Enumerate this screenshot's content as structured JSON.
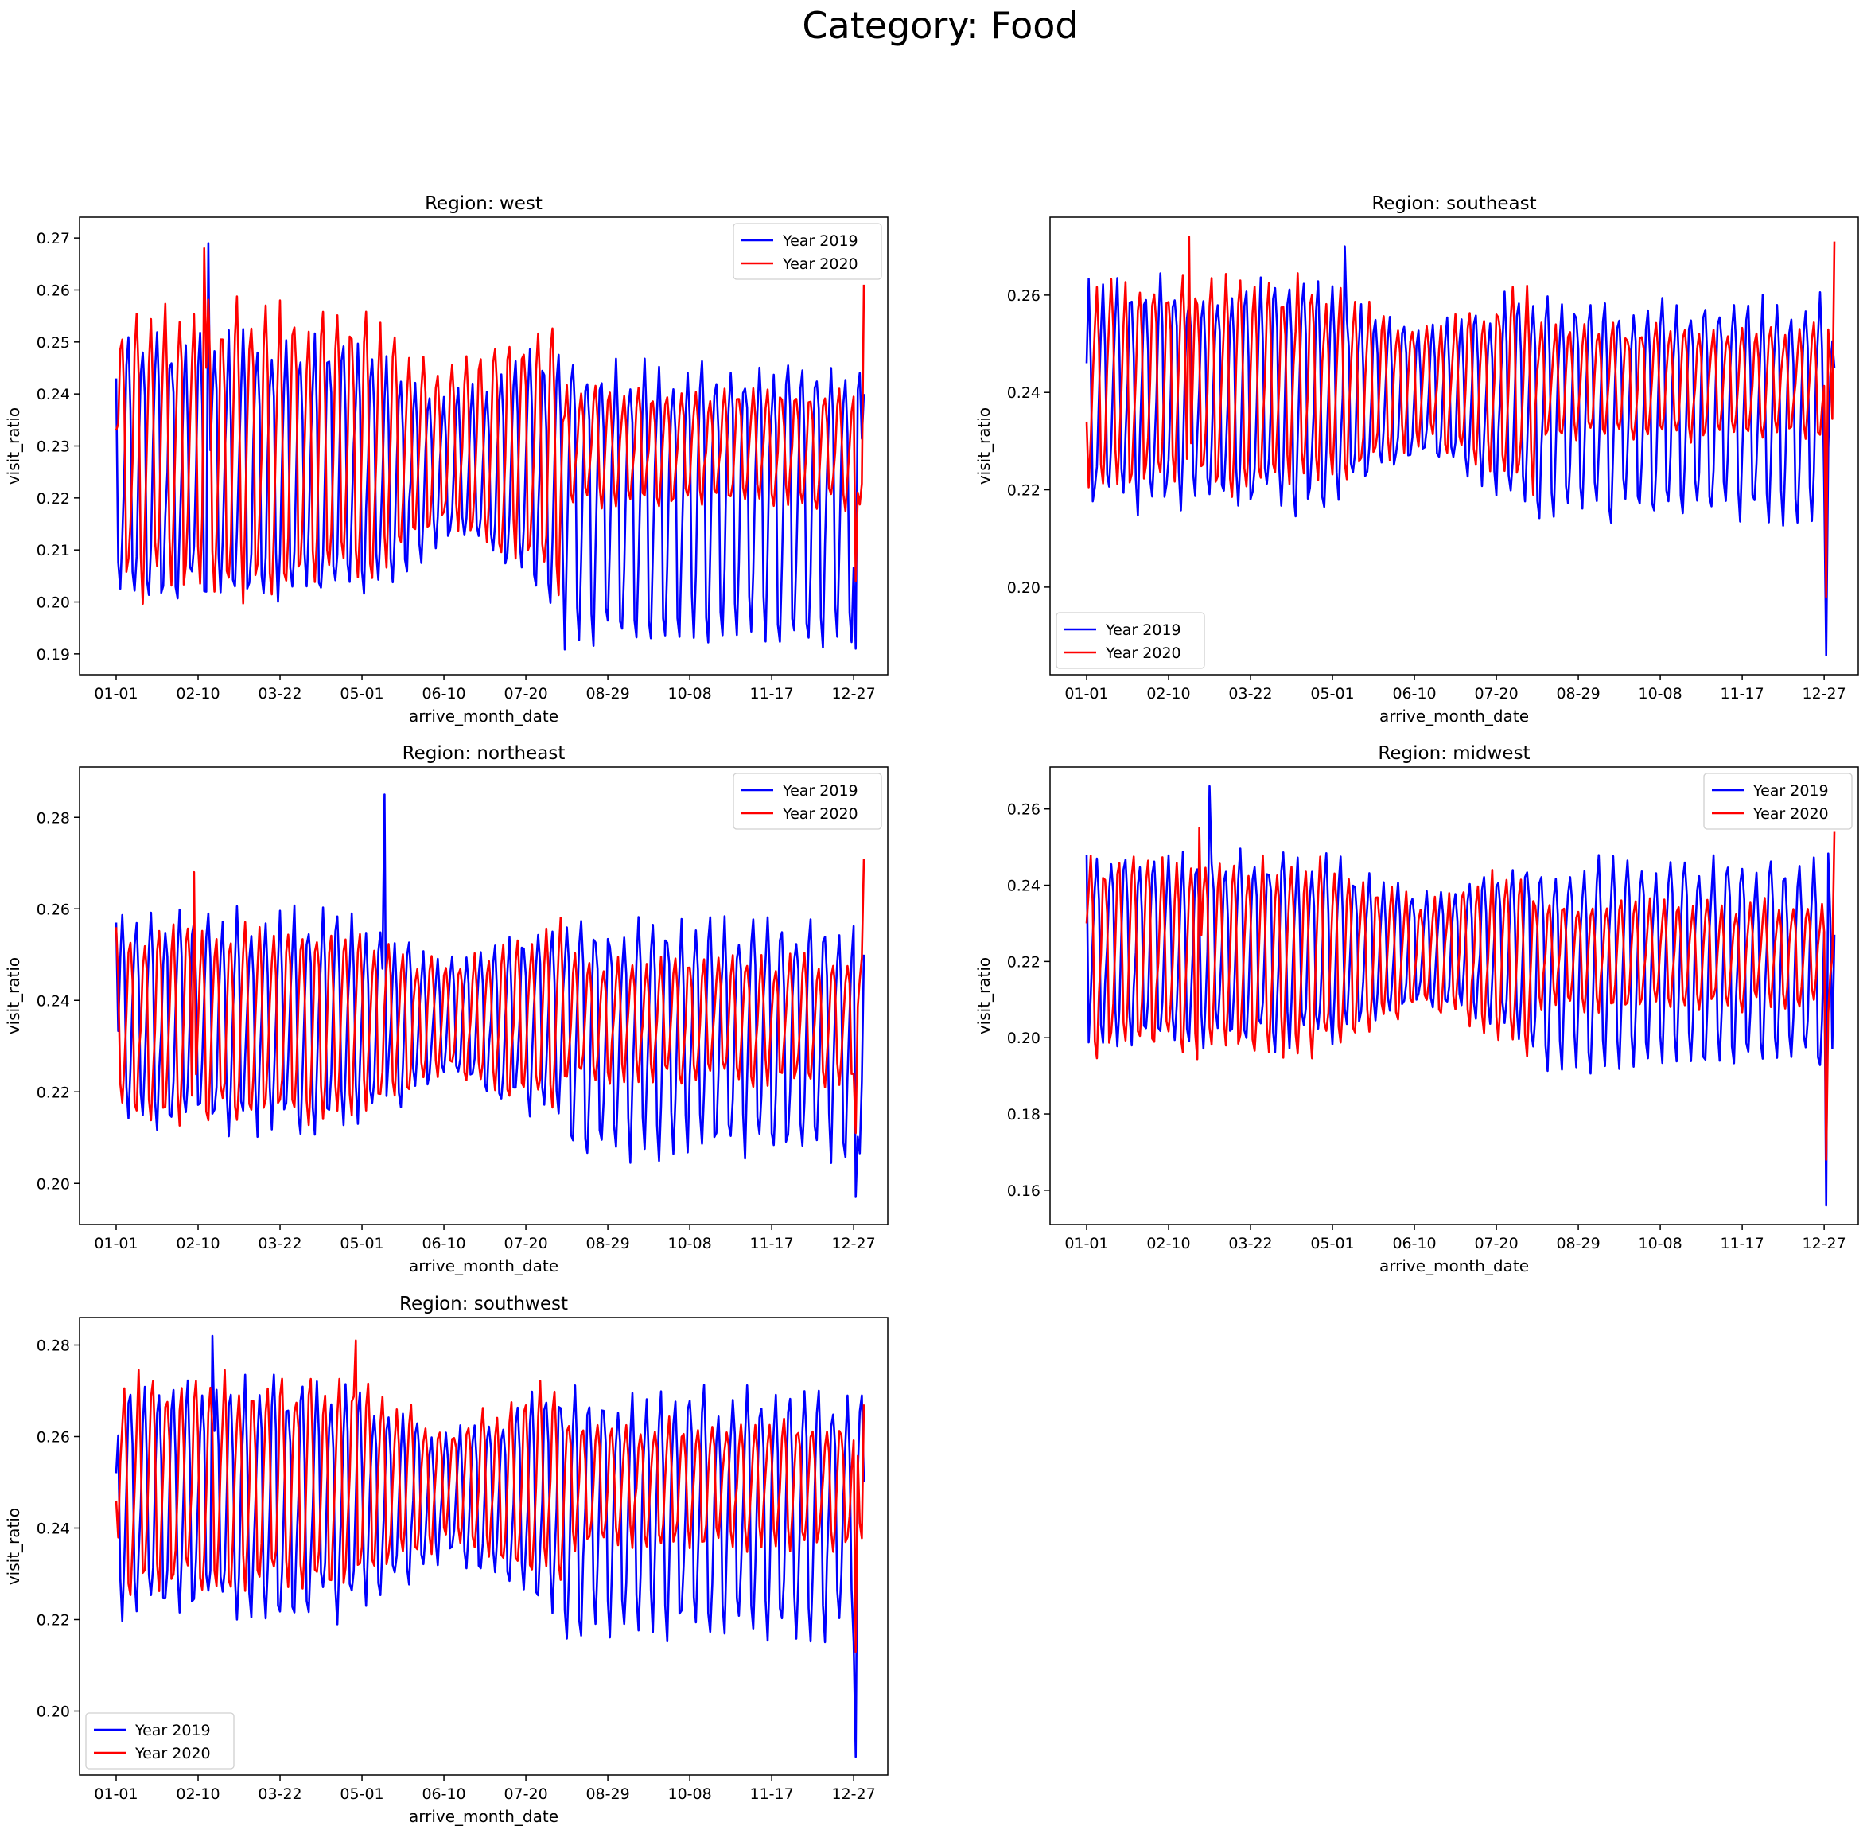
{
  "figure": {
    "suptitle": "Category: Food"
  },
  "colors": {
    "year2019": "#0000ff",
    "year2020": "#ff0000"
  },
  "chart_data": [
    {
      "type": "line",
      "title": "Region: west",
      "xlabel": "arrive_month_date",
      "ylabel": "visit_ratio",
      "xtick_labels": [
        "01-01",
        "02-10",
        "03-22",
        "05-01",
        "06-10",
        "07-20",
        "08-29",
        "10-08",
        "11-17",
        "12-27"
      ],
      "yticks": [
        0.19,
        0.2,
        0.21,
        0.22,
        0.23,
        0.24,
        0.25,
        0.26,
        0.27
      ],
      "ylim": [
        0.186,
        0.274
      ],
      "legend": "upper right",
      "grid": false,
      "series": [
        {
          "name": "Year 2019",
          "color": "#0000ff",
          "base": 0.226,
          "amp": 0.024,
          "drift": 0,
          "late_amp": 0.018,
          "late_dip": 0.014,
          "spike": {
            "y": 0.269,
            "day": 45
          },
          "end_dip": 0.191,
          "end": 0.24,
          "start": 0.243
        },
        {
          "name": "Year 2020",
          "color": "#ff0000",
          "base": 0.23,
          "amp": 0.026,
          "drift": 0,
          "late_amp": 0.009,
          "late_dip": 0,
          "spike": {
            "y": 0.268,
            "day": 43
          },
          "end_dip": 0.204,
          "end": 0.261,
          "start": 0.233
        }
      ]
    },
    {
      "type": "line",
      "title": "Region: southeast",
      "xlabel": "arrive_month_date",
      "ylabel": "visit_ratio",
      "xtick_labels": [
        "01-01",
        "02-10",
        "03-22",
        "05-01",
        "06-10",
        "07-20",
        "08-29",
        "10-08",
        "11-17",
        "12-27"
      ],
      "yticks": [
        0.2,
        0.22,
        0.24,
        0.26
      ],
      "ylim": [
        0.182,
        0.276
      ],
      "legend": "lower left",
      "grid": false,
      "series": [
        {
          "name": "Year 2019",
          "color": "#0000ff",
          "base": 0.24,
          "amp": 0.022,
          "drift": 0,
          "late_amp": 0.018,
          "late_dip": 0.006,
          "spike": {
            "y": 0.27,
            "day": 126
          },
          "end_dip": 0.186,
          "end": 0.245,
          "start": 0.246
        },
        {
          "name": "Year 2020",
          "color": "#ff0000",
          "base": 0.242,
          "amp": 0.02,
          "drift": 0,
          "late_amp": 0.01,
          "late_dip": 0,
          "spike": {
            "y": 0.272,
            "day": 50
          },
          "end_dip": 0.198,
          "end": 0.271,
          "start": 0.234
        }
      ]
    },
    {
      "type": "line",
      "title": "Region: northeast",
      "xlabel": "arrive_month_date",
      "ylabel": "visit_ratio",
      "xtick_labels": [
        "01-01",
        "02-10",
        "03-22",
        "05-01",
        "06-10",
        "07-20",
        "08-29",
        "10-08",
        "11-17",
        "12-27"
      ],
      "yticks": [
        0.2,
        0.22,
        0.24,
        0.26,
        0.28
      ],
      "ylim": [
        0.191,
        0.291
      ],
      "legend": "upper right",
      "grid": false,
      "series": [
        {
          "name": "Year 2019",
          "color": "#0000ff",
          "base": 0.236,
          "amp": 0.022,
          "drift": 0,
          "late_amp": 0.02,
          "late_dip": 0.008,
          "spike": {
            "y": 0.285,
            "day": 131
          },
          "end_dip": 0.197,
          "end": 0.25,
          "start": 0.257
        },
        {
          "name": "Year 2020",
          "color": "#ff0000",
          "base": 0.236,
          "amp": 0.02,
          "drift": 0,
          "late_amp": 0.012,
          "late_dip": 0,
          "spike": {
            "y": 0.268,
            "day": 38
          },
          "end_dip": 0.211,
          "end": 0.271,
          "start": 0.256
        }
      ]
    },
    {
      "type": "line",
      "title": "Region: midwest",
      "xlabel": "arrive_month_date",
      "ylabel": "visit_ratio",
      "xtick_labels": [
        "01-01",
        "02-10",
        "03-22",
        "05-01",
        "06-10",
        "07-20",
        "08-29",
        "10-08",
        "11-17",
        "12-27"
      ],
      "yticks": [
        0.16,
        0.18,
        0.2,
        0.22,
        0.24,
        0.26
      ],
      "ylim": [
        0.151,
        0.271
      ],
      "legend": "upper right",
      "grid": false,
      "series": [
        {
          "name": "Year 2019",
          "color": "#0000ff",
          "base": 0.224,
          "amp": 0.024,
          "drift": 0,
          "late_amp": 0.022,
          "late_dip": 0.008,
          "spike": {
            "y": 0.266,
            "day": 60
          },
          "end_dip": 0.156,
          "end": 0.227,
          "start": 0.248
        },
        {
          "name": "Year 2020",
          "color": "#ff0000",
          "base": 0.222,
          "amp": 0.024,
          "drift": 0,
          "late_amp": 0.012,
          "late_dip": 0,
          "spike": {
            "y": 0.255,
            "day": 55
          },
          "end_dip": 0.168,
          "end": 0.254,
          "start": 0.23
        }
      ]
    },
    {
      "type": "line",
      "title": "Region: southwest",
      "xlabel": "arrive_month_date",
      "ylabel": "visit_ratio",
      "xtick_labels": [
        "01-01",
        "02-10",
        "03-22",
        "05-01",
        "06-10",
        "07-20",
        "08-29",
        "10-08",
        "11-17",
        "12-27"
      ],
      "yticks": [
        0.2,
        0.22,
        0.24,
        0.26,
        0.28
      ],
      "ylim": [
        0.186,
        0.286
      ],
      "legend": "lower left",
      "grid": false,
      "series": [
        {
          "name": "Year 2019",
          "color": "#0000ff",
          "base": 0.247,
          "amp": 0.024,
          "drift": 0,
          "late_amp": 0.022,
          "late_dip": 0.006,
          "spike": {
            "y": 0.282,
            "day": 47
          },
          "end_dip": 0.19,
          "end": 0.25,
          "start": 0.252
        },
        {
          "name": "Year 2020",
          "color": "#ff0000",
          "base": 0.25,
          "amp": 0.022,
          "drift": 0,
          "late_amp": 0.012,
          "late_dip": 0,
          "spike": {
            "y": 0.281,
            "day": 117
          },
          "end_dip": 0.213,
          "end": 0.267,
          "start": 0.246
        }
      ]
    }
  ]
}
